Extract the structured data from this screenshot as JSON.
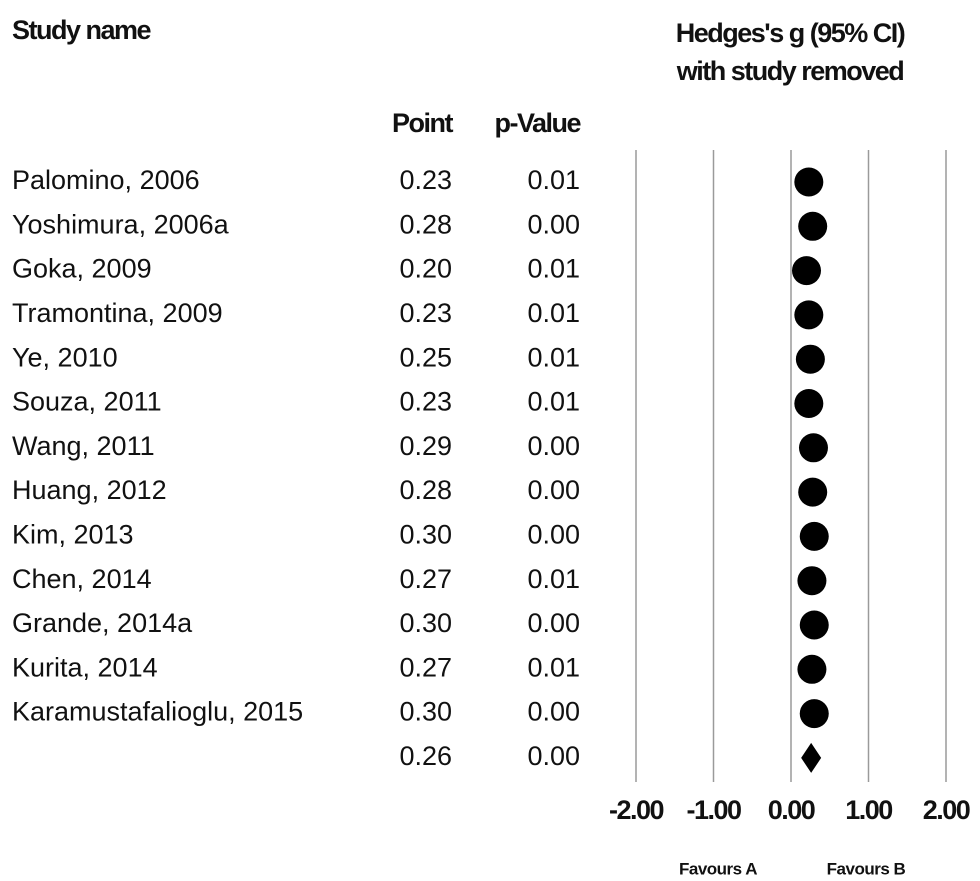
{
  "chart_data": {
    "type": "forest",
    "column_headers": {
      "study": "Study name",
      "effect": [
        "Hedges's g (95% CI)",
        "with study removed"
      ],
      "point": "Point",
      "p": "p-Value"
    },
    "categories": [
      "Palomino, 2006",
      "Yoshimura, 2006a",
      "Goka, 2009",
      "Tramontina, 2009",
      "Ye, 2010",
      "Souza, 2011",
      "Wang, 2011",
      "Huang, 2012",
      "Kim, 2013",
      "Chen, 2014",
      "Grande, 2014a",
      "Kurita, 2014",
      "Karamustafalioglu, 2015"
    ],
    "values": [
      0.23,
      0.28,
      0.2,
      0.23,
      0.25,
      0.23,
      0.29,
      0.28,
      0.3,
      0.27,
      0.3,
      0.27,
      0.3
    ],
    "value_labels": [
      "0.23",
      "0.28",
      "0.20",
      "0.23",
      "0.25",
      "0.23",
      "0.29",
      "0.28",
      "0.30",
      "0.27",
      "0.30",
      "0.27",
      "0.30"
    ],
    "p_values": [
      "0.01",
      "0.00",
      "0.01",
      "0.01",
      "0.01",
      "0.01",
      "0.00",
      "0.00",
      "0.00",
      "0.01",
      "0.00",
      "0.01",
      "0.00"
    ],
    "summary": {
      "value": 0.26,
      "value_label": "0.26",
      "p_value": "0.00"
    },
    "color": "#000000",
    "xlim": [
      -2,
      2
    ],
    "xticks": [
      {
        "value": -2,
        "label": "-2.00"
      },
      {
        "value": -1,
        "label": "-1.00"
      },
      {
        "value": 0,
        "label": "0.00"
      },
      {
        "value": 1,
        "label": "1.00"
      },
      {
        "value": 2,
        "label": "2.00"
      }
    ],
    "grid": true,
    "annotations": [
      "Favours A",
      "Favours B"
    ]
  }
}
